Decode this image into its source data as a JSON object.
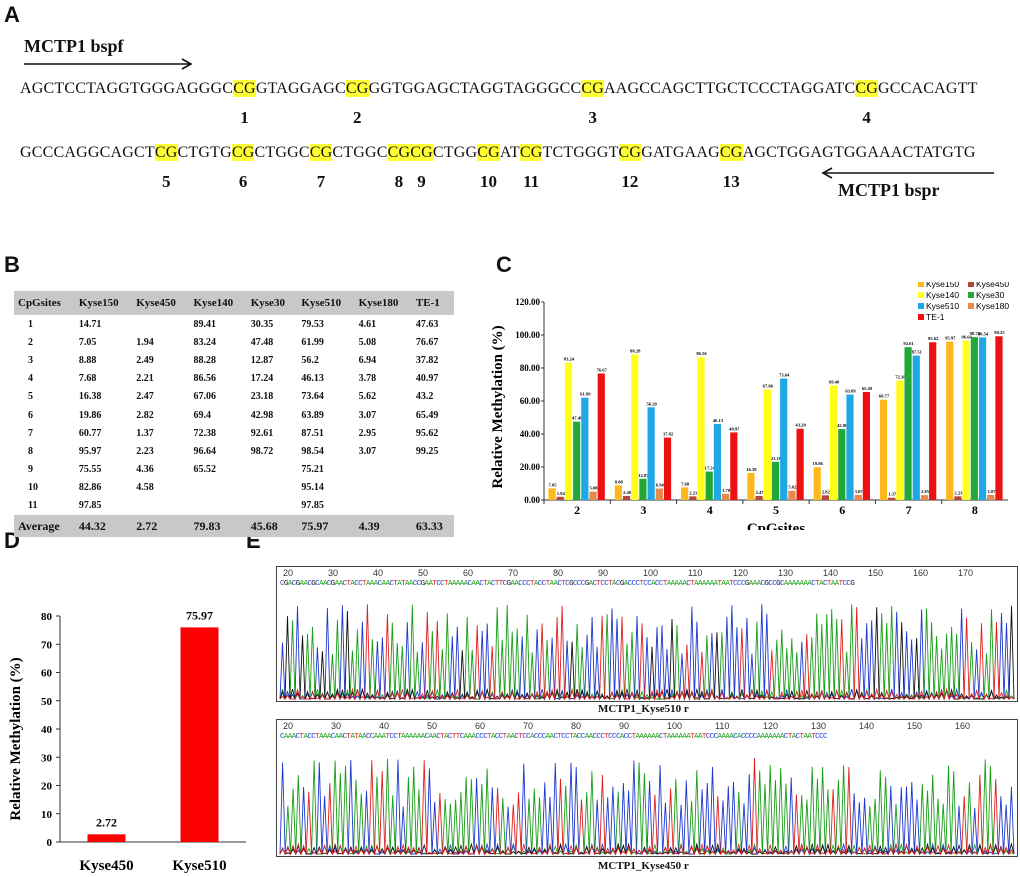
{
  "panels": {
    "A": "A",
    "B": "B",
    "C": "C",
    "D": "D",
    "E": "E"
  },
  "sequence": {
    "primer_forward": "MCTP1  bspf",
    "primer_reverse": "MCTP1  bspr",
    "line1": [
      "AGCTCCTAGGTGGGAGGGC",
      "CG",
      "GTAGGAGC",
      "CG",
      "GGTGGAGCTAGGTAGGGCC",
      "CG",
      "AAGCCAGCTTGCTCCCTAGGATC",
      "CG",
      "GCCACAGTT"
    ],
    "line2": [
      "GCCCAGGCAGCT",
      "CG",
      "CTGTG",
      "CG",
      "CTGGC",
      "CG",
      "CTGGC",
      "CG",
      "",
      "CG",
      "CTGG",
      "CG",
      "AT",
      "CG",
      "TCTGGGT",
      "CG",
      "GATGAAG",
      "CG",
      "AGCTGGAGTGGAAACTATGTG"
    ],
    "site_numbers_line1": [
      "1",
      "2",
      "3",
      "4"
    ],
    "site_numbers_line2": [
      "5",
      "6",
      "7",
      "8",
      "9",
      "10",
      "11",
      "12",
      "13"
    ]
  },
  "table": {
    "headers": [
      "CpGsites",
      "Kyse150",
      "Kyse450",
      "Kyse140",
      "Kyse30",
      "Kyse510",
      "Kyse180",
      "TE-1"
    ],
    "rows": [
      [
        "1",
        "14.71",
        "",
        "89.41",
        "30.35",
        "79.53",
        "4.61",
        "47.63"
      ],
      [
        "2",
        "7.05",
        "1.94",
        "83.24",
        "47.48",
        "61.99",
        "5.08",
        "76.67"
      ],
      [
        "3",
        "8.88",
        "2.49",
        "88.28",
        "12.87",
        "56.2",
        "6.94",
        "37.82"
      ],
      [
        "4",
        "7.68",
        "2.21",
        "86.56",
        "17.24",
        "46.13",
        "3.78",
        "40.97"
      ],
      [
        "5",
        "16.38",
        "2.47",
        "67.06",
        "23.18",
        "73.64",
        "5.62",
        "43.2"
      ],
      [
        "6",
        "19.86",
        "2.82",
        "69.4",
        "42.98",
        "63.89",
        "3.07",
        "65.49"
      ],
      [
        "7",
        "60.77",
        "1.37",
        "72.38",
        "92.61",
        "87.51",
        "2.95",
        "95.62"
      ],
      [
        "8",
        "95.97",
        "2.23",
        "96.64",
        "98.72",
        "98.54",
        "3.07",
        "99.25"
      ],
      [
        "9",
        "75.55",
        "4.36",
        "65.52",
        "",
        "75.21",
        "",
        ""
      ],
      [
        "10",
        "82.86",
        "4.58",
        "",
        "",
        "95.14",
        "",
        ""
      ],
      [
        "11",
        "97.85",
        "",
        "",
        "",
        "97.85",
        "",
        ""
      ]
    ],
    "average": [
      "Average",
      "44.32",
      "2.72",
      "79.83",
      "45.68",
      "75.97",
      "4.39",
      "63.33"
    ]
  },
  "chart_data": [
    {
      "type": "bar",
      "panel": "C",
      "xlabel": "CpGsites",
      "ylabel": "Relative Methylation (%)",
      "ylim": [
        0,
        120
      ],
      "yticks": [
        "0.00",
        "20.00",
        "40.00",
        "60.00",
        "80.00",
        "100.00",
        "120.00"
      ],
      "categories": [
        "2",
        "3",
        "4",
        "5",
        "6",
        "7",
        "8"
      ],
      "legend_position": "top-right",
      "series": [
        {
          "name": "Kyse150",
          "color": "#ffb81c",
          "values": [
            7.05,
            8.88,
            7.68,
            16.38,
            19.86,
            60.77,
            95.97
          ],
          "labels": [
            "7.05",
            "8.88",
            "7.68",
            "16.38",
            "19.86",
            "60.77",
            "95.97"
          ]
        },
        {
          "name": "Kyse450",
          "color": "#b4473a",
          "values": [
            1.94,
            2.49,
            2.21,
            2.47,
            2.82,
            1.37,
            2.23
          ],
          "labels": [
            "1.94",
            "2.49",
            "2.21",
            "2.47",
            "2.82",
            "1.37",
            "2.23"
          ]
        },
        {
          "name": "Kyse140",
          "color": "#ffff1a",
          "values": [
            83.24,
            88.28,
            86.56,
            67.06,
            69.4,
            72.38,
            96.64
          ],
          "labels": [
            "83.24",
            "88.28",
            "86.56",
            "67.06",
            "69.40",
            "72.38",
            "96.64"
          ]
        },
        {
          "name": "Kyse30",
          "color": "#22a838",
          "values": [
            47.48,
            12.87,
            17.24,
            23.18,
            42.98,
            92.61,
            98.72
          ],
          "labels": [
            "47.48",
            "12.87",
            "17.24",
            "23.18",
            "42.98",
            "92.61",
            "98.72"
          ]
        },
        {
          "name": "Kyse510",
          "color": "#1fa8e6",
          "values": [
            61.99,
            56.2,
            46.13,
            73.64,
            63.89,
            87.51,
            98.54
          ],
          "labels": [
            "61.99",
            "56.20",
            "46.13",
            "73.64",
            "63.89",
            "87.51",
            "98.54"
          ]
        },
        {
          "name": "Kyse180",
          "color": "#e8884a",
          "values": [
            5.08,
            6.94,
            3.78,
            5.62,
            3.07,
            2.95,
            3.07
          ],
          "labels": [
            "5.08",
            "6.94",
            "3.78",
            "5.62",
            "3.07",
            "2.95",
            "3.07"
          ]
        },
        {
          "name": "TE-1",
          "color": "#ee1111",
          "values": [
            76.67,
            37.82,
            40.97,
            43.2,
            65.49,
            95.62,
            99.25
          ],
          "labels": [
            "76.67",
            "37.82",
            "40.97",
            "43.20",
            "65.49",
            "95.62",
            "99.25"
          ]
        }
      ]
    },
    {
      "type": "bar",
      "panel": "D",
      "ylabel": "Relative Methylation (%)",
      "ylim": [
        0,
        80
      ],
      "yticks": [
        "0",
        "10",
        "20",
        "30",
        "40",
        "50",
        "60",
        "70",
        "80"
      ],
      "categories": [
        "Kyse450",
        "Kyse510"
      ],
      "values": [
        2.72,
        75.97
      ],
      "labels": [
        "2.72",
        "75.97"
      ],
      "color": "#ff0000"
    }
  ],
  "chromatograms": [
    {
      "title": "MCTP1_Kyse510 r",
      "ticks": [
        "20",
        "30",
        "40",
        "50",
        "60",
        "70",
        "80",
        "90",
        "100",
        "110",
        "120",
        "130",
        "140",
        "150",
        "160",
        "170"
      ],
      "bases": "CGACGAACGCAACGAACTACCTAAACAACTATAACCGAATCCTAAAAACAACTACTTCGAACCCTACCTAACTCGCCCGACTCCTACGACCCTCCACCTAAAAACTAAAAAATAATCCCGAAACGCCGCAAAAAAACTACTAATCCG"
    },
    {
      "title": "MCTP1_Kyse450 r",
      "ticks": [
        "20",
        "30",
        "40",
        "50",
        "60",
        "70",
        "80",
        "90",
        "100",
        "110",
        "120",
        "130",
        "140",
        "150",
        "160"
      ],
      "bases": "CAAACTACCTAAACAACTATAACCAAATCCTAAAAAACAACTACTTCAAACCCTACCTAACTCCACCCAACTCCTACCAACCCTCCCACCTAAAAAACTAAAAAATAATCCCAAAACACCCCAAAAAAACTACTAATCCC"
    }
  ]
}
